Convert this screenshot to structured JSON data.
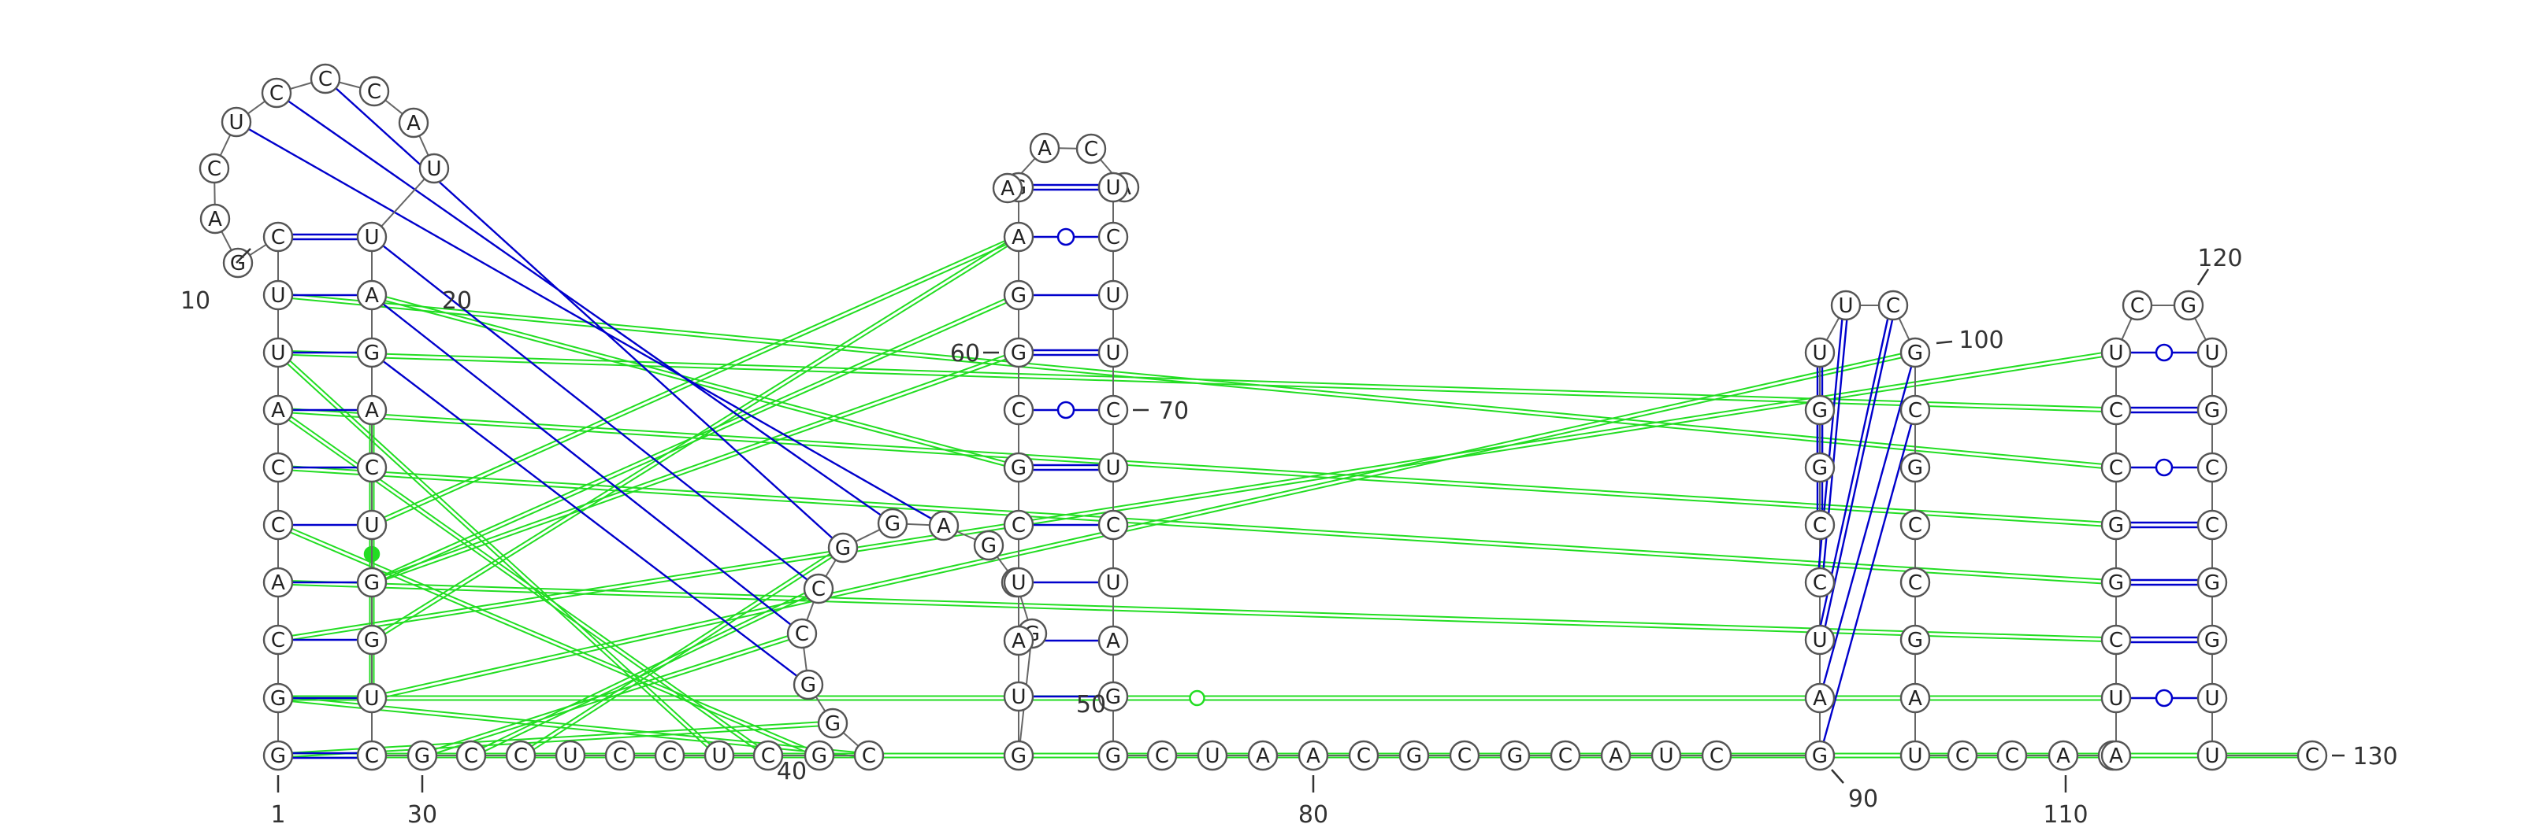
{
  "diagram": {
    "type": "rna-secondary-structure",
    "colors": {
      "canonical_pair": "#0000cc",
      "tertiary_interaction": "#22dd22",
      "base_outline": "#555555",
      "backbone": "#666666"
    },
    "sequence": [
      {
        "n": 1,
        "b": "G"
      },
      {
        "n": 2,
        "b": "G"
      },
      {
        "n": 3,
        "b": "C"
      },
      {
        "n": 4,
        "b": "A"
      },
      {
        "n": 5,
        "b": "C"
      },
      {
        "n": 6,
        "b": "C"
      },
      {
        "n": 7,
        "b": "A"
      },
      {
        "n": 8,
        "b": "U"
      },
      {
        "n": 9,
        "b": "U"
      },
      {
        "n": 10,
        "b": "C"
      },
      {
        "n": 11,
        "b": "G"
      },
      {
        "n": 12,
        "b": "A"
      },
      {
        "n": 13,
        "b": "C"
      },
      {
        "n": 14,
        "b": "U"
      },
      {
        "n": 15,
        "b": "C"
      },
      {
        "n": 16,
        "b": "C"
      },
      {
        "n": 17,
        "b": "C"
      },
      {
        "n": 18,
        "b": "A"
      },
      {
        "n": 19,
        "b": "U"
      },
      {
        "n": 20,
        "b": "U"
      },
      {
        "n": 21,
        "b": "A"
      },
      {
        "n": 22,
        "b": "G"
      },
      {
        "n": 23,
        "b": "A"
      },
      {
        "n": 24,
        "b": "C"
      },
      {
        "n": 25,
        "b": "U"
      },
      {
        "n": 26,
        "b": "G"
      },
      {
        "n": 27,
        "b": "G"
      },
      {
        "n": 28,
        "b": "U"
      },
      {
        "n": 29,
        "b": "C"
      },
      {
        "n": 30,
        "b": "G"
      },
      {
        "n": 31,
        "b": "C"
      },
      {
        "n": 32,
        "b": "C"
      },
      {
        "n": 33,
        "b": "U"
      },
      {
        "n": 34,
        "b": "C"
      },
      {
        "n": 35,
        "b": "C"
      },
      {
        "n": 36,
        "b": "U"
      },
      {
        "n": 37,
        "b": "C"
      },
      {
        "n": 38,
        "b": "G"
      },
      {
        "n": 39,
        "b": "C"
      },
      {
        "n": 40,
        "b": "G"
      },
      {
        "n": 41,
        "b": "G"
      },
      {
        "n": 42,
        "b": "C"
      },
      {
        "n": 43,
        "b": "C"
      },
      {
        "n": 44,
        "b": "G"
      },
      {
        "n": 45,
        "b": "G"
      },
      {
        "n": 46,
        "b": "A"
      },
      {
        "n": 47,
        "b": "G"
      },
      {
        "n": 48,
        "b": "G"
      },
      {
        "n": 49,
        "b": "G"
      },
      {
        "n": 50,
        "b": "G"
      },
      {
        "n": 51,
        "b": "U"
      },
      {
        "n": 52,
        "b": "A"
      },
      {
        "n": 53,
        "b": "U"
      },
      {
        "n": 54,
        "b": "C"
      },
      {
        "n": 55,
        "b": "G"
      },
      {
        "n": 56,
        "b": "C"
      },
      {
        "n": 57,
        "b": "G"
      },
      {
        "n": 58,
        "b": "G"
      },
      {
        "n": 59,
        "b": "A"
      },
      {
        "n": 60,
        "b": "G"
      },
      {
        "n": 61,
        "b": "G"
      },
      {
        "n": 62,
        "b": "A"
      },
      {
        "n": 63,
        "b": "A"
      },
      {
        "n": 64,
        "b": "C"
      },
      {
        "n": 65,
        "b": "A"
      },
      {
        "n": 66,
        "b": "G"
      },
      {
        "n": 67,
        "b": "U"
      },
      {
        "n": 68,
        "b": "C"
      },
      {
        "n": 69,
        "b": "U"
      },
      {
        "n": 70,
        "b": "U"
      },
      {
        "n": 71,
        "b": "C"
      },
      {
        "n": 72,
        "b": "U"
      },
      {
        "n": 73,
        "b": "C"
      },
      {
        "n": 74,
        "b": "U"
      },
      {
        "n": 75,
        "b": "A"
      },
      {
        "n": 76,
        "b": "G"
      },
      {
        "n": 77,
        "b": "G"
      },
      {
        "n": 78,
        "b": "C"
      },
      {
        "n": 79,
        "b": "U"
      },
      {
        "n": 80,
        "b": "A"
      },
      {
        "n": 81,
        "b": "A"
      },
      {
        "n": 82,
        "b": "C"
      },
      {
        "n": 83,
        "b": "G"
      },
      {
        "n": 84,
        "b": "C"
      },
      {
        "n": 85,
        "b": "G"
      },
      {
        "n": 86,
        "b": "C"
      },
      {
        "n": 87,
        "b": "A"
      },
      {
        "n": 88,
        "b": "U"
      },
      {
        "n": 89,
        "b": "C"
      },
      {
        "n": 90,
        "b": "G"
      },
      {
        "n": 91,
        "b": "A"
      },
      {
        "n": 92,
        "b": "U"
      },
      {
        "n": 93,
        "b": "C"
      },
      {
        "n": 94,
        "b": "C"
      },
      {
        "n": 95,
        "b": "G"
      },
      {
        "n": 96,
        "b": "G"
      },
      {
        "n": 97,
        "b": "U"
      },
      {
        "n": 98,
        "b": "U"
      },
      {
        "n": 99,
        "b": "C"
      },
      {
        "n": 100,
        "b": "G"
      },
      {
        "n": 101,
        "b": "C"
      },
      {
        "n": 102,
        "b": "G"
      },
      {
        "n": 103,
        "b": "C"
      },
      {
        "n": 104,
        "b": "C"
      },
      {
        "n": 105,
        "b": "G"
      },
      {
        "n": 106,
        "b": "A"
      },
      {
        "n": 107,
        "b": "U"
      },
      {
        "n": 108,
        "b": "C"
      },
      {
        "n": 109,
        "b": "C"
      },
      {
        "n": 110,
        "b": "A"
      },
      {
        "n": 111,
        "b": "A"
      },
      {
        "n": 112,
        "b": "A"
      },
      {
        "n": 113,
        "b": "U"
      },
      {
        "n": 114,
        "b": "C"
      },
      {
        "n": 115,
        "b": "G"
      },
      {
        "n": 116,
        "b": "G"
      },
      {
        "n": 117,
        "b": "C"
      },
      {
        "n": 118,
        "b": "C"
      },
      {
        "n": 119,
        "b": "U"
      },
      {
        "n": 120,
        "b": "C"
      },
      {
        "n": 121,
        "b": "G"
      },
      {
        "n": 122,
        "b": "U"
      },
      {
        "n": 123,
        "b": "G"
      },
      {
        "n": 124,
        "b": "C"
      },
      {
        "n": 125,
        "b": "C"
      },
      {
        "n": 126,
        "b": "G"
      },
      {
        "n": 127,
        "b": "G"
      },
      {
        "n": 128,
        "b": "U"
      },
      {
        "n": 129,
        "b": "U"
      },
      {
        "n": 130,
        "b": "C"
      }
    ],
    "position_labels": [
      "1",
      "10",
      "20",
      "30",
      "40",
      "50",
      "60",
      "70",
      "80",
      "90",
      "100",
      "110",
      "120",
      "130"
    ],
    "pairs": [
      {
        "i": 1,
        "j": 29,
        "kind": "double"
      },
      {
        "i": 2,
        "j": 28,
        "kind": "single"
      },
      {
        "i": 3,
        "j": 27,
        "kind": "single"
      },
      {
        "i": 4,
        "j": 26,
        "kind": "single"
      },
      {
        "i": 5,
        "j": 25,
        "kind": "single"
      },
      {
        "i": 6,
        "j": 24,
        "kind": "single"
      },
      {
        "i": 7,
        "j": 23,
        "kind": "single"
      },
      {
        "i": 8,
        "j": 22,
        "kind": "single"
      },
      {
        "i": 9,
        "j": 21,
        "kind": "single"
      },
      {
        "i": 10,
        "j": 20,
        "kind": "double"
      },
      {
        "i": 51,
        "j": 76,
        "kind": "single"
      },
      {
        "i": 52,
        "j": 75,
        "kind": "single"
      },
      {
        "i": 53,
        "j": 74,
        "kind": "single"
      },
      {
        "i": 54,
        "j": 73,
        "kind": "single"
      },
      {
        "i": 55,
        "j": 72,
        "kind": "double"
      },
      {
        "i": 56,
        "j": 71,
        "kind": "wobble"
      },
      {
        "i": 57,
        "j": 70,
        "kind": "double"
      },
      {
        "i": 58,
        "j": 69,
        "kind": "single"
      },
      {
        "i": 59,
        "j": 68,
        "kind": "wobble"
      },
      {
        "i": 60,
        "j": 67,
        "kind": "double"
      },
      {
        "i": 61,
        "j": 66,
        "kind": "single"
      },
      {
        "i": 90,
        "j": 101,
        "kind": "single"
      },
      {
        "i": 91,
        "j": 100,
        "kind": "single"
      },
      {
        "i": 92,
        "j": 99,
        "kind": "double"
      },
      {
        "i": 93,
        "j": 98,
        "kind": "double"
      },
      {
        "i": 94,
        "j": 97,
        "kind": "double"
      },
      {
        "i": 95,
        "j": 96,
        "kind": "double"
      },
      {
        "i": 113,
        "j": 128,
        "kind": "wobble"
      },
      {
        "i": 114,
        "j": 127,
        "kind": "double"
      },
      {
        "i": 115,
        "j": 126,
        "kind": "double"
      },
      {
        "i": 116,
        "j": 125,
        "kind": "double"
      },
      {
        "i": 117,
        "j": 124,
        "kind": "wobble"
      },
      {
        "i": 118,
        "j": 123,
        "kind": "double"
      },
      {
        "i": 119,
        "j": 122,
        "kind": "wobble"
      }
    ],
    "pseudoknot_links": [
      {
        "i": 14,
        "j": 46
      },
      {
        "i": 15,
        "j": 45
      },
      {
        "i": 16,
        "j": 44
      },
      {
        "i": 20,
        "j": 43
      },
      {
        "i": 21,
        "j": 42
      },
      {
        "i": 22,
        "j": 41
      }
    ],
    "tertiary_links": [
      {
        "i": 1,
        "j": 40,
        "mark": "none"
      },
      {
        "i": 2,
        "j": 39,
        "mark": "none"
      },
      {
        "i": 5,
        "j": 38,
        "mark": "none"
      },
      {
        "i": 7,
        "j": 37,
        "mark": "none"
      },
      {
        "i": 8,
        "j": 36,
        "mark": "none"
      },
      {
        "i": 10,
        "j": 61,
        "mark": "none"
      },
      {
        "i": 21,
        "j": 55,
        "mark": "none"
      },
      {
        "i": 26,
        "j": 58,
        "mark": "none"
      },
      {
        "i": 27,
        "j": 59,
        "mark": "none"
      },
      {
        "i": 26,
        "j": 57,
        "mark": "none"
      },
      {
        "i": 25,
        "j": 59,
        "mark": "none"
      },
      {
        "i": 3,
        "j": 119,
        "mark": "none"
      },
      {
        "i": 4,
        "j": 114,
        "mark": "none"
      },
      {
        "i": 6,
        "j": 115,
        "mark": "none"
      },
      {
        "i": 7,
        "j": 116,
        "mark": "none"
      },
      {
        "i": 9,
        "j": 117,
        "mark": "none"
      },
      {
        "i": 8,
        "j": 118,
        "mark": "none"
      },
      {
        "i": 1,
        "j": 90,
        "mark": "none"
      },
      {
        "i": 28,
        "j": 100,
        "mark": "none"
      },
      {
        "i": 29,
        "j": 89,
        "mark": "none"
      },
      {
        "i": 30,
        "j": 130,
        "mark": "none"
      },
      {
        "i": 32,
        "j": 44,
        "mark": "none"
      },
      {
        "i": 31,
        "j": 43,
        "mark": "none"
      },
      {
        "i": 30,
        "j": 42,
        "mark": "none"
      },
      {
        "i": 2,
        "j": 113,
        "mark": "open"
      },
      {
        "i": 23,
        "j": 28,
        "mark": "filled"
      }
    ]
  }
}
